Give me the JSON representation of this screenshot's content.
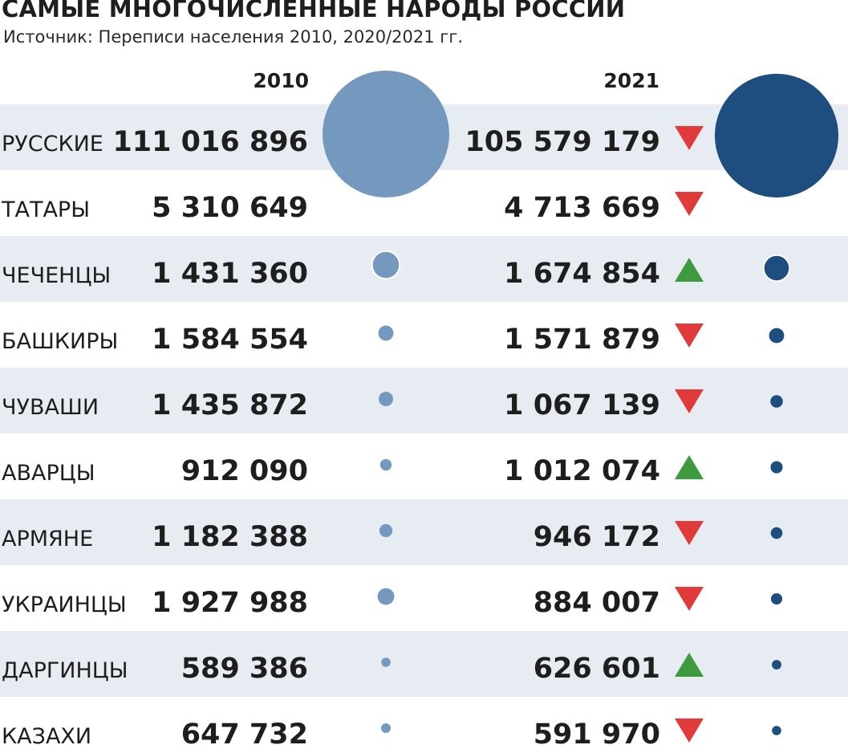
{
  "title": "САМЫЕ МНОГОЧИСЛЕННЫЕ НАРОДЫ РОССИИ",
  "subtitle": "Источник: Переписи населения 2010, 2020/2021 гг.",
  "columns": {
    "year1": "2010",
    "year2": "2021"
  },
  "colors": {
    "band": "#e6ecf2",
    "circle_2010": "#7598bf",
    "circle_2021": "#1e4d80",
    "up": "#3d9a3f",
    "down": "#e03a3a"
  },
  "chart_data": {
    "type": "table",
    "title": "САМЫЕ МНОГОЧИСЛЕННЫЕ НАРОДЫ РОССИИ",
    "columns": [
      "2010",
      "2021"
    ],
    "rows": [
      {
        "name": "РУССКИЕ",
        "v2010": "111 016 896",
        "v2021": "105 579 179",
        "n2010": 111016896,
        "n2021": 105579179,
        "trend": "down"
      },
      {
        "name": "ТАТАРЫ",
        "v2010": "5 310 649",
        "v2021": "4 713 669",
        "n2010": 5310649,
        "n2021": 4713669,
        "trend": "down"
      },
      {
        "name": "ЧЕЧЕНЦЫ",
        "v2010": "1 431 360",
        "v2021": "1 674 854",
        "n2010": 1431360,
        "n2021": 1674854,
        "trend": "up"
      },
      {
        "name": "БАШКИРЫ",
        "v2010": "1 584 554",
        "v2021": "1 571 879",
        "n2010": 1584554,
        "n2021": 1571879,
        "trend": "down"
      },
      {
        "name": "ЧУВАШИ",
        "v2010": "1 435 872",
        "v2021": "1 067 139",
        "n2010": 1435872,
        "n2021": 1067139,
        "trend": "down"
      },
      {
        "name": "АВАРЦЫ",
        "v2010": "912 090",
        "v2021": "1 012 074",
        "n2010": 912090,
        "n2021": 1012074,
        "trend": "up"
      },
      {
        "name": "АРМЯНЕ",
        "v2010": "1 182 388",
        "v2021": "946 172",
        "n2010": 1182388,
        "n2021": 946172,
        "trend": "down"
      },
      {
        "name": "УКРАИНЦЫ",
        "v2010": "1 927 988",
        "v2021": "884 007",
        "n2010": 1927988,
        "n2021": 884007,
        "trend": "down"
      },
      {
        "name": "ДАРГИНЦЫ",
        "v2010": "589 386",
        "v2021": "626 601",
        "n2010": 589386,
        "n2021": 626601,
        "trend": "up"
      },
      {
        "name": "КАЗАХИ",
        "v2010": "647 732",
        "v2021": "591 970",
        "n2010": 647732,
        "n2021": 591970,
        "trend": "down"
      }
    ]
  }
}
